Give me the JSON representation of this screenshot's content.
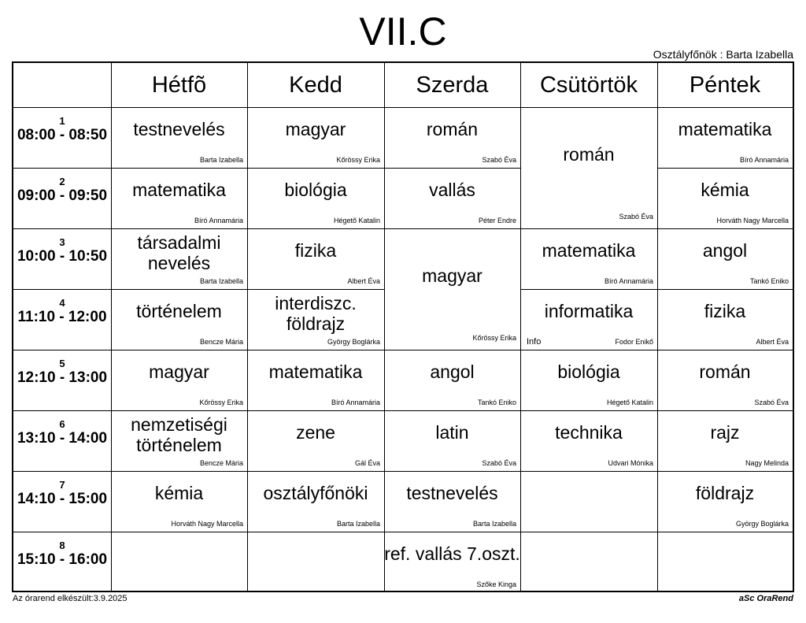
{
  "title": "VII.C",
  "head_teacher": "Osztályfőnök : Barta Izabella",
  "days": [
    "Hétfõ",
    "Kedd",
    "Szerda",
    "Csütörtök",
    "Péntek"
  ],
  "periods": [
    {
      "num": "1",
      "time": "08:00 - 08:50"
    },
    {
      "num": "2",
      "time": "09:00 - 09:50"
    },
    {
      "num": "3",
      "time": "10:00 - 10:50"
    },
    {
      "num": "4",
      "time": "11:10 - 12:00"
    },
    {
      "num": "5",
      "time": "12:10 - 13:00"
    },
    {
      "num": "6",
      "time": "13:10 - 14:00"
    },
    {
      "num": "7",
      "time": "14:10 - 15:00"
    },
    {
      "num": "8",
      "time": "15:10 - 16:00"
    }
  ],
  "lessons": [
    {
      "day": 0,
      "period": 0,
      "span": 1,
      "subject": "testnevelés",
      "teacher": "Barta Izabella"
    },
    {
      "day": 0,
      "period": 1,
      "span": 1,
      "subject": "matematika",
      "teacher": "Bíró Annamária"
    },
    {
      "day": 0,
      "period": 2,
      "span": 1,
      "subject": "társadalmi nevelés",
      "teacher": "Barta Izabella"
    },
    {
      "day": 0,
      "period": 3,
      "span": 1,
      "subject": "történelem",
      "teacher": "Bencze Mária"
    },
    {
      "day": 0,
      "period": 4,
      "span": 1,
      "subject": "magyar",
      "teacher": "Kőrössy Erika"
    },
    {
      "day": 0,
      "period": 5,
      "span": 1,
      "subject": "nemzetiségi történelem",
      "teacher": "Bencze Mária"
    },
    {
      "day": 0,
      "period": 6,
      "span": 1,
      "subject": "kémia",
      "teacher": "Horváth Nagy Marcella"
    },
    {
      "day": 1,
      "period": 0,
      "span": 1,
      "subject": "magyar",
      "teacher": "Kőrössy Erika"
    },
    {
      "day": 1,
      "period": 1,
      "span": 1,
      "subject": "biológia",
      "teacher": "Hégető Katalin"
    },
    {
      "day": 1,
      "period": 2,
      "span": 1,
      "subject": "fizika",
      "teacher": "Albert Éva"
    },
    {
      "day": 1,
      "period": 3,
      "span": 1,
      "subject": "interdiszc. földrajz",
      "teacher": "György Boglárka"
    },
    {
      "day": 1,
      "period": 4,
      "span": 1,
      "subject": "matematika",
      "teacher": "Bíró Annamária"
    },
    {
      "day": 1,
      "period": 5,
      "span": 1,
      "subject": "zene",
      "teacher": "Gál Éva"
    },
    {
      "day": 1,
      "period": 6,
      "span": 1,
      "subject": "osztályfőnöki",
      "teacher": "Barta Izabella"
    },
    {
      "day": 2,
      "period": 0,
      "span": 1,
      "subject": "román",
      "teacher": "Szabó Éva"
    },
    {
      "day": 2,
      "period": 1,
      "span": 1,
      "subject": "vallás",
      "teacher": "Péter Endre"
    },
    {
      "day": 2,
      "period": 2,
      "span": 2,
      "subject": "magyar",
      "teacher": "Kőrössy Erika"
    },
    {
      "day": 2,
      "period": 4,
      "span": 1,
      "subject": "angol",
      "teacher": "Tankó Eniko"
    },
    {
      "day": 2,
      "period": 5,
      "span": 1,
      "subject": "latin",
      "teacher": "Szabó Éva"
    },
    {
      "day": 2,
      "period": 6,
      "span": 1,
      "subject": "testnevelés",
      "teacher": "Barta Izabella"
    },
    {
      "day": 2,
      "period": 7,
      "span": 1,
      "subject": "ref. vallás 7.oszt.",
      "teacher": "Szőke Kinga"
    },
    {
      "day": 3,
      "period": 0,
      "span": 2,
      "subject": "román",
      "teacher": "Szabó Éva"
    },
    {
      "day": 3,
      "period": 2,
      "span": 1,
      "subject": "matematika",
      "teacher": "Bíró Annamária"
    },
    {
      "day": 3,
      "period": 3,
      "span": 1,
      "subject": "informatika",
      "teacher": "Fodor Enikő",
      "room": "Info"
    },
    {
      "day": 3,
      "period": 4,
      "span": 1,
      "subject": "biológia",
      "teacher": "Hégető Katalin"
    },
    {
      "day": 3,
      "period": 5,
      "span": 1,
      "subject": "technika",
      "teacher": "Udvari Mónika"
    },
    {
      "day": 4,
      "period": 0,
      "span": 1,
      "subject": "matematika",
      "teacher": "Bíró Annamária"
    },
    {
      "day": 4,
      "period": 1,
      "span": 1,
      "subject": "kémia",
      "teacher": "Horváth Nagy Marcella"
    },
    {
      "day": 4,
      "period": 2,
      "span": 1,
      "subject": "angol",
      "teacher": "Tankó Eniko"
    },
    {
      "day": 4,
      "period": 3,
      "span": 1,
      "subject": "fizika",
      "teacher": "Albert Éva"
    },
    {
      "day": 4,
      "period": 4,
      "span": 1,
      "subject": "román",
      "teacher": "Szabó Éva"
    },
    {
      "day": 4,
      "period": 5,
      "span": 1,
      "subject": "rajz",
      "teacher": "Nagy Melinda"
    },
    {
      "day": 4,
      "period": 6,
      "span": 1,
      "subject": "földrajz",
      "teacher": "György Boglárka"
    }
  ],
  "footer": {
    "left": "Az órarend elkészült:3.9.2025",
    "right": "aSc OraRend"
  }
}
